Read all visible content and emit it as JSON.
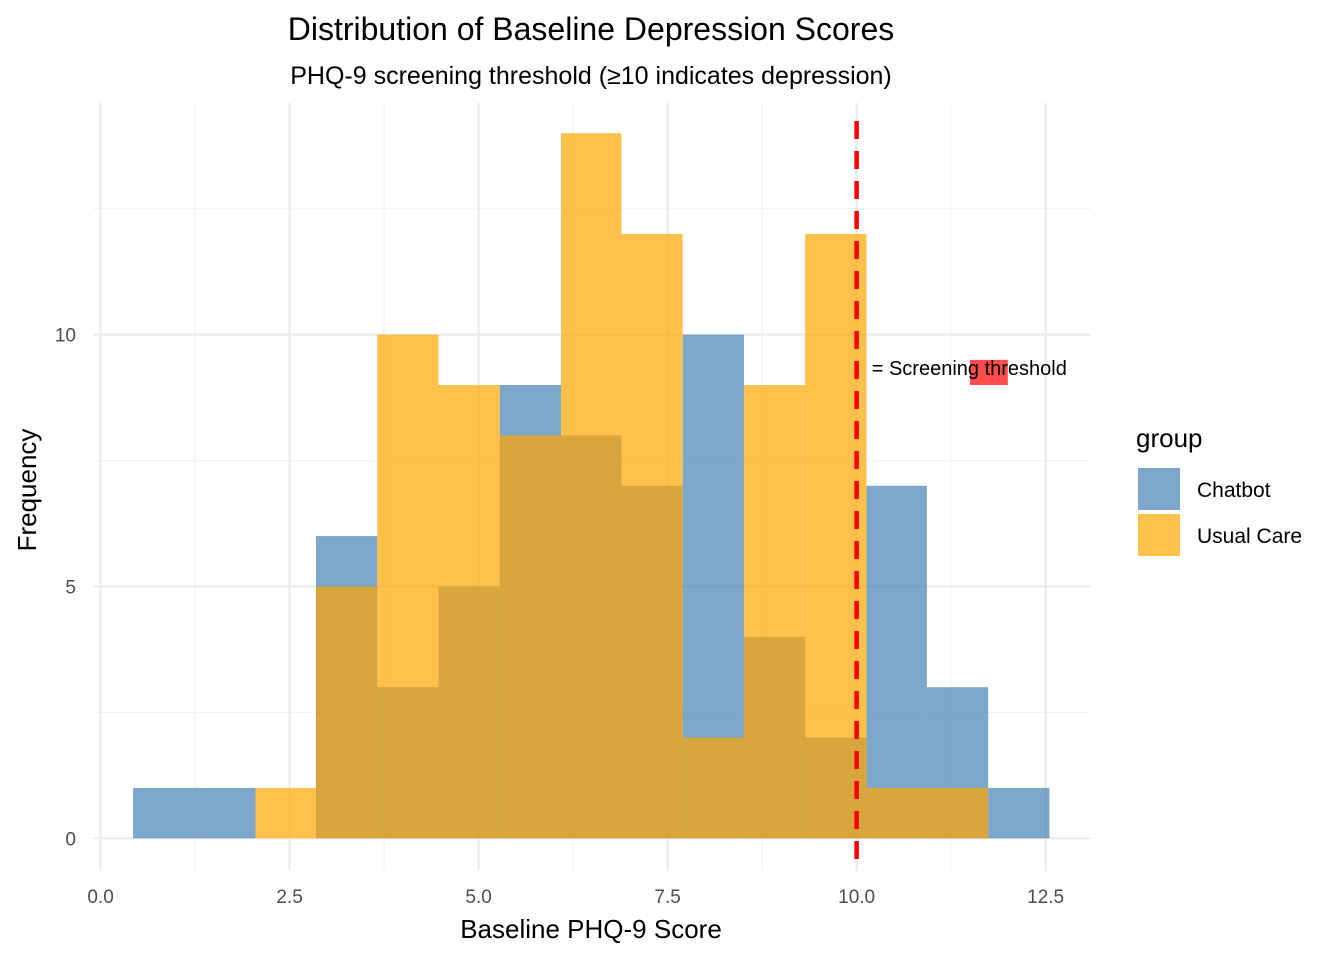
{
  "chart_data": {
    "type": "histogram",
    "title": "Distribution of Baseline Depression Scores",
    "subtitle": "PHQ-9 screening threshold (≥10 indicates depression)",
    "xlabel": "Baseline PHQ-9 Score",
    "ylabel": "Frequency",
    "xlim": [
      -0.1,
      13.1
    ],
    "ylim": [
      -0.65,
      14.6
    ],
    "x_ticks": [
      0.0,
      2.5,
      5.0,
      7.5,
      10.0,
      12.5
    ],
    "x_tick_labels": [
      "0.0",
      "2.5",
      "5.0",
      "7.5",
      "10.0",
      "12.5"
    ],
    "y_ticks": [
      0,
      5,
      10
    ],
    "y_tick_labels": [
      "0",
      "5",
      "10"
    ],
    "bin_edges": [
      0.43,
      1.24,
      2.05,
      2.85,
      3.66,
      4.47,
      5.28,
      6.09,
      6.89,
      7.7,
      8.51,
      9.32,
      10.13,
      10.93,
      11.74,
      12.55
    ],
    "series": [
      {
        "name": "Chatbot",
        "color": "#4682b4",
        "opacity": 0.7,
        "counts": [
          1,
          1,
          0,
          6,
          3,
          5,
          9,
          8,
          7,
          10,
          4,
          2,
          7,
          3,
          1
        ]
      },
      {
        "name": "Usual Care",
        "color": "#ffa500",
        "opacity": 0.7,
        "counts": [
          0,
          0,
          1,
          5,
          10,
          9,
          8,
          14,
          12,
          2,
          9,
          12,
          1,
          1,
          0
        ]
      }
    ],
    "reference_line": {
      "x": 10,
      "color": "#ff0000",
      "style": "dashed"
    },
    "annotation": {
      "text": "= Screening threshold",
      "x": 10.2,
      "y": 9.2,
      "swatch_color": "#ff0000"
    },
    "legend": {
      "title": "group",
      "position": "right"
    },
    "grid": true
  }
}
